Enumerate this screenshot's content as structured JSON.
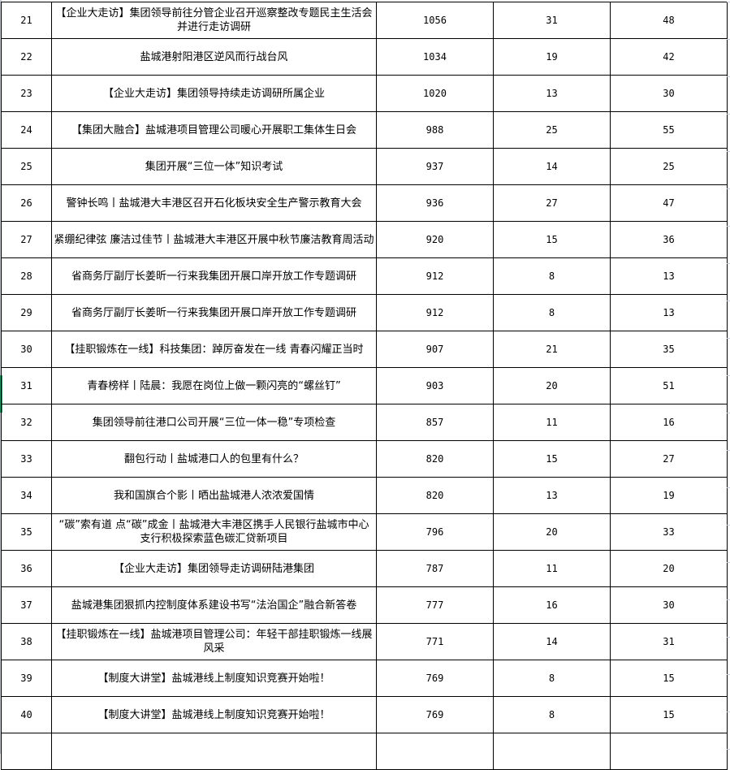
{
  "rows": [
    {
      "no": "21",
      "title": "【企业大走访】集团领导前往分管企业召开巡察整改专题民主生活会并进行走访调研",
      "c": "1056",
      "d": "31",
      "e": "48"
    },
    {
      "no": "22",
      "title": "盐城港射阳港区逆风而行战台风",
      "c": "1034",
      "d": "19",
      "e": "42"
    },
    {
      "no": "23",
      "title": "【企业大走访】集团领导持续走访调研所属企业",
      "c": "1020",
      "d": "13",
      "e": "30"
    },
    {
      "no": "24",
      "title": "【集团大融合】盐城港项目管理公司暖心开展职工集体生日会",
      "c": "988",
      "d": "25",
      "e": "55"
    },
    {
      "no": "25",
      "title": "集团开展“三位一体”知识考试",
      "c": "937",
      "d": "14",
      "e": "25"
    },
    {
      "no": "26",
      "title": "警钟长鸣丨盐城港大丰港区召开石化板块安全生产警示教育大会",
      "c": "936",
      "d": "27",
      "e": "47"
    },
    {
      "no": "27",
      "title": "紧绷纪律弦  廉洁过佳节丨盐城港大丰港区开展中秋节廉洁教育周活动",
      "c": "920",
      "d": "15",
      "e": "36"
    },
    {
      "no": "28",
      "title": "省商务厅副厅长姜昕一行来我集团开展口岸开放工作专题调研",
      "c": "912",
      "d": "8",
      "e": "13"
    },
    {
      "no": "29",
      "title": "省商务厅副厅长姜昕一行来我集团开展口岸开放工作专题调研",
      "c": "912",
      "d": "8",
      "e": "13"
    },
    {
      "no": "30",
      "title": "【挂职锻炼在一线】科技集团：踔厉奋发在一线  青春闪耀正当时",
      "c": "907",
      "d": "21",
      "e": "35"
    },
    {
      "no": "31",
      "title": "青春榜样丨陆晨：我愿在岗位上做一颗闪亮的“螺丝钉”",
      "c": "903",
      "d": "20",
      "e": "51"
    },
    {
      "no": "32",
      "title": "集团领导前往港口公司开展“三位一体一稳”专项检查",
      "c": "857",
      "d": "11",
      "e": "16"
    },
    {
      "no": "33",
      "title": "翻包行动丨盐城港口人的包里有什么？",
      "c": "820",
      "d": "15",
      "e": "27"
    },
    {
      "no": "34",
      "title": "我和国旗合个影丨晒出盐城港人浓浓爱国情",
      "c": "820",
      "d": "13",
      "e": "19"
    },
    {
      "no": "35",
      "title": "“碳”索有道 点“碳”成金丨盐城港大丰港区携手人民银行盐城市中心支行积极探索蓝色碳汇贷新项目",
      "c": "796",
      "d": "20",
      "e": "33"
    },
    {
      "no": "36",
      "title": "【企业大走访】集团领导走访调研陆港集团",
      "c": "787",
      "d": "11",
      "e": "20"
    },
    {
      "no": "37",
      "title": "盐城港集团狠抓内控制度体系建设书写“法治国企”融合新答卷",
      "c": "777",
      "d": "16",
      "e": "30"
    },
    {
      "no": "38",
      "title": "【挂职锻炼在一线】盐城港项目管理公司：年轻干部挂职锻炼一线展风采",
      "c": "771",
      "d": "14",
      "e": "31"
    },
    {
      "no": "39",
      "title": "【制度大讲堂】盐城港线上制度知识竞赛开始啦！",
      "c": "769",
      "d": "8",
      "e": "15"
    },
    {
      "no": "40",
      "title": "【制度大讲堂】盐城港线上制度知识竞赛开始啦！",
      "c": "769",
      "d": "8",
      "e": "15"
    }
  ],
  "active_row": "31",
  "colors": {
    "active_row_marker": "#1fa463",
    "grid": "#000000",
    "header_edge": "#c6c9d6"
  }
}
